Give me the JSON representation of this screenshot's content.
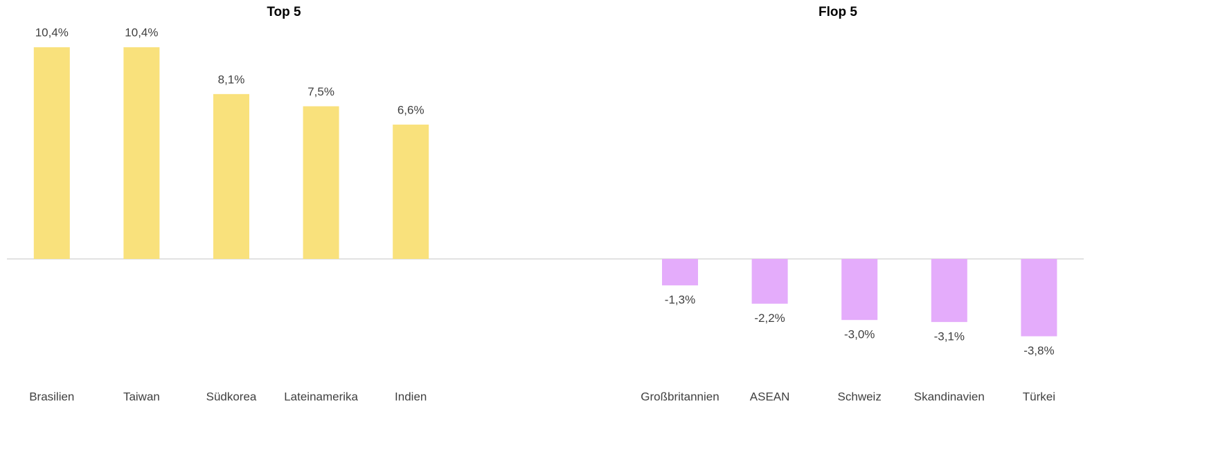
{
  "chart_data": [
    {
      "type": "bar",
      "title": "Top 5",
      "categories": [
        "Brasilien",
        "Taiwan",
        "Südkorea",
        "Lateinamerika",
        "Indien"
      ],
      "values": [
        10.4,
        10.4,
        8.1,
        7.5,
        6.6
      ],
      "value_labels": [
        "10,4%",
        "10,4%",
        "8,1%",
        "7,5%",
        "6,6%"
      ],
      "color": "#f9e17c"
    },
    {
      "type": "bar",
      "title": "Flop 5",
      "categories": [
        "Großbritannien",
        "ASEAN",
        "Schweiz",
        "Skandinavien",
        "Türkei"
      ],
      "values": [
        -1.3,
        -2.2,
        -3.0,
        -3.1,
        -3.8
      ],
      "value_labels": [
        "-1,3%",
        "-2,2%",
        "-3,0%",
        "-3,1%",
        "-3,8%"
      ],
      "color": "#e4acfb"
    }
  ]
}
